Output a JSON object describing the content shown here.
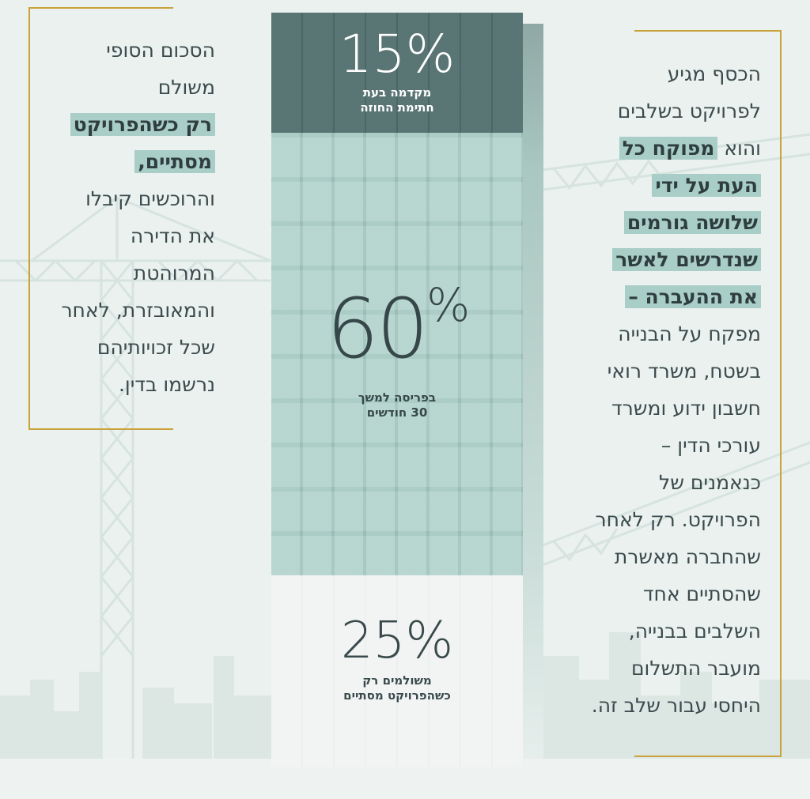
{
  "left_panel": {
    "line1": "הסכום הסופי",
    "line2": "משולם",
    "highlight1": "רק כשהפרויקט",
    "highlight2": "מסתיים,",
    "line3": "והרוכשים קיבלו",
    "line4": "את הדירה",
    "line5": "המרוהטת",
    "line6": "והמאובזרת, לאחר",
    "line7": "שכל זכויותיהם",
    "line8": "נרשמו בדין."
  },
  "right_panel": {
    "line1": "הכסף מגיע",
    "line2": "לפרויקט בשלבים",
    "line3_plain": "והוא ",
    "line3_hl": "מפוקח כל",
    "hl2": "העת על ידי",
    "hl3": "שלושה גורמים",
    "hl4": "שנדרשים לאשר",
    "hl5": "את ההעברה –",
    "line4": "מפקח על הבנייה",
    "line5": "בשטח, משרד רואי",
    "line6": "חשבון ידוע ומשרד",
    "line7": "עורכי הדין –",
    "line8": "כנאמנים של",
    "line9": "הפרויקט. רק לאחר",
    "line10": "שהחברה מאשרת",
    "line11": "שהסתיים אחד",
    "line12": "השלבים בבנייה,",
    "line13": "מועבר התשלום",
    "line14": "היחסי עבור שלב זה."
  },
  "building": {
    "top": {
      "percent": "15%",
      "caption1": "מקדמה בעת",
      "caption2": "חתימת החוזה",
      "share": 15
    },
    "middle": {
      "percent_num": "60",
      "percent_sign": "%",
      "caption1": "בפריסה למשך",
      "caption2": "30 חודשים",
      "share": 60
    },
    "bottom": {
      "percent": "25%",
      "caption1": "משולמים רק",
      "caption2": "כשהפרויקט מסתיים",
      "share": 25
    }
  },
  "colors": {
    "accent_dark": "#4f6c6b",
    "accent_light": "#a8cdc6",
    "highlight": "#a9cec7",
    "frame_gold": "#c9a23a",
    "text": "#3b4a4c"
  }
}
